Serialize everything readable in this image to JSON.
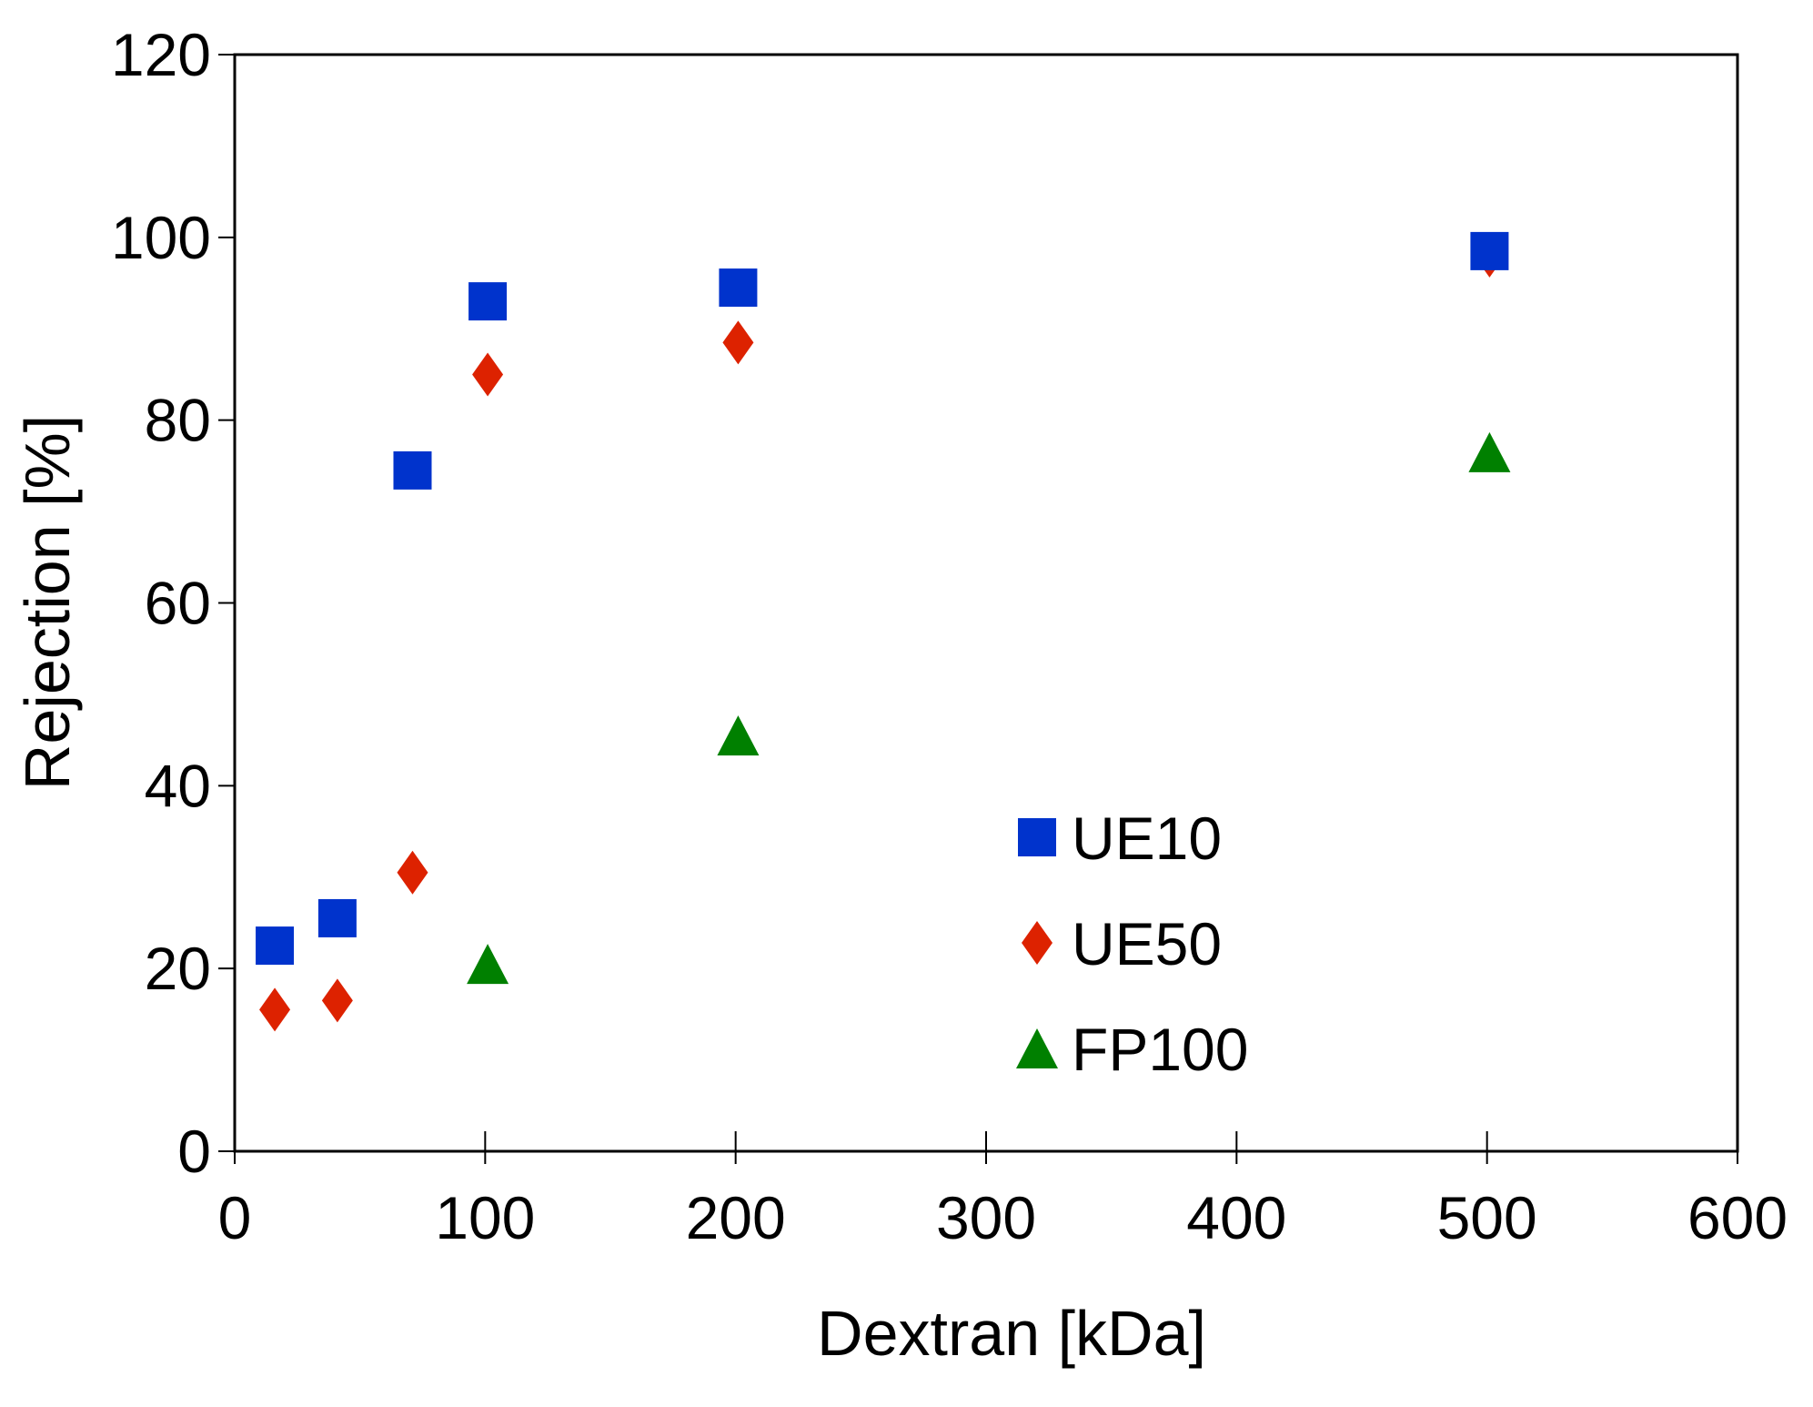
{
  "chart_data": {
    "type": "scatter",
    "title": "",
    "xlabel": "Dextran [kDa]",
    "ylabel": "Rejection [%]",
    "xlim": [
      0,
      600
    ],
    "ylim": [
      0,
      120
    ],
    "x_ticks": [
      0,
      100,
      200,
      300,
      400,
      500,
      600
    ],
    "y_ticks": [
      0,
      20,
      40,
      60,
      80,
      100,
      120
    ],
    "grid": false,
    "legend_position": "lower-center-right",
    "series": [
      {
        "name": "UE10",
        "marker": "square",
        "color": "#0033CC",
        "points": [
          {
            "x": 16,
            "y": 22.5
          },
          {
            "x": 41,
            "y": 25.5
          },
          {
            "x": 71,
            "y": 74.5
          },
          {
            "x": 101,
            "y": 93
          },
          {
            "x": 201,
            "y": 94.5
          },
          {
            "x": 501,
            "y": 98.5
          }
        ]
      },
      {
        "name": "UE50",
        "marker": "diamond",
        "color": "#DD2200",
        "points": [
          {
            "x": 16,
            "y": 15.5
          },
          {
            "x": 41,
            "y": 16.5
          },
          {
            "x": 71,
            "y": 30.5
          },
          {
            "x": 101,
            "y": 85
          },
          {
            "x": 201,
            "y": 88.5
          },
          {
            "x": 501,
            "y": 98
          }
        ]
      },
      {
        "name": "FP100",
        "marker": "triangle",
        "color": "#008000",
        "points": [
          {
            "x": 101,
            "y": 20.5
          },
          {
            "x": 201,
            "y": 45.5
          },
          {
            "x": 501,
            "y": 76.5
          }
        ]
      }
    ]
  }
}
